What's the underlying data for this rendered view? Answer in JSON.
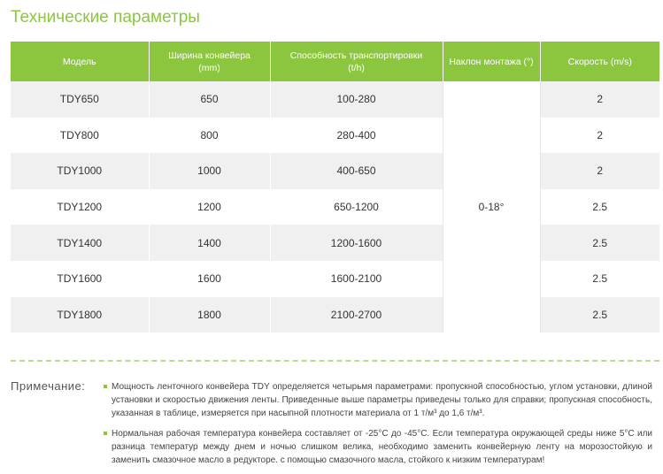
{
  "title": "Технические параметры",
  "table": {
    "headers": [
      "Модель",
      "Ширина конвейера\n(mm)",
      "Способность транспортировки\n(t/h)",
      "Наклон монтажа (°)",
      "Скорость (m/s)"
    ],
    "rows": [
      [
        "TDY650",
        "650",
        "100-280",
        "2"
      ],
      [
        "TDY800",
        "800",
        "280-400",
        "2"
      ],
      [
        "TDY1000",
        "1000",
        "400-650",
        "2"
      ],
      [
        "TDY1200",
        "1200",
        "650-1200",
        "2.5"
      ],
      [
        "TDY1400",
        "1400",
        "1200-1600",
        "2.5"
      ],
      [
        "TDY1600",
        "1600",
        "1600-2100",
        "2.5"
      ],
      [
        "TDY1800",
        "1800",
        "2100-2700",
        "2.5"
      ]
    ],
    "tilt": "0-18°"
  },
  "note": {
    "label": "Примечание:",
    "items": [
      "Мощность ленточного конвейера TDY определяется четырьмя параметрами: пропускной способностью, углом установки, длиной установки и скоростью движения ленты. Приведенные выше параметры приведены только для справки; пропускная способность, указанная в таблице, измеряется при насыпной плотности материала от 1 т/м³ до 1,6 т/м³.",
      "Нормальная рабочая температура конвейера составляет от -25°C до -45°C. Если температура окружающей среды ниже 5°C или разница температур между днем и ночью слишком велика, необходимо заменить конвейерную ленту на морозостойкую и заменить смазочное масло в редукторе. с помощью смазочного масла, стойкого к низким температурам!"
    ]
  }
}
